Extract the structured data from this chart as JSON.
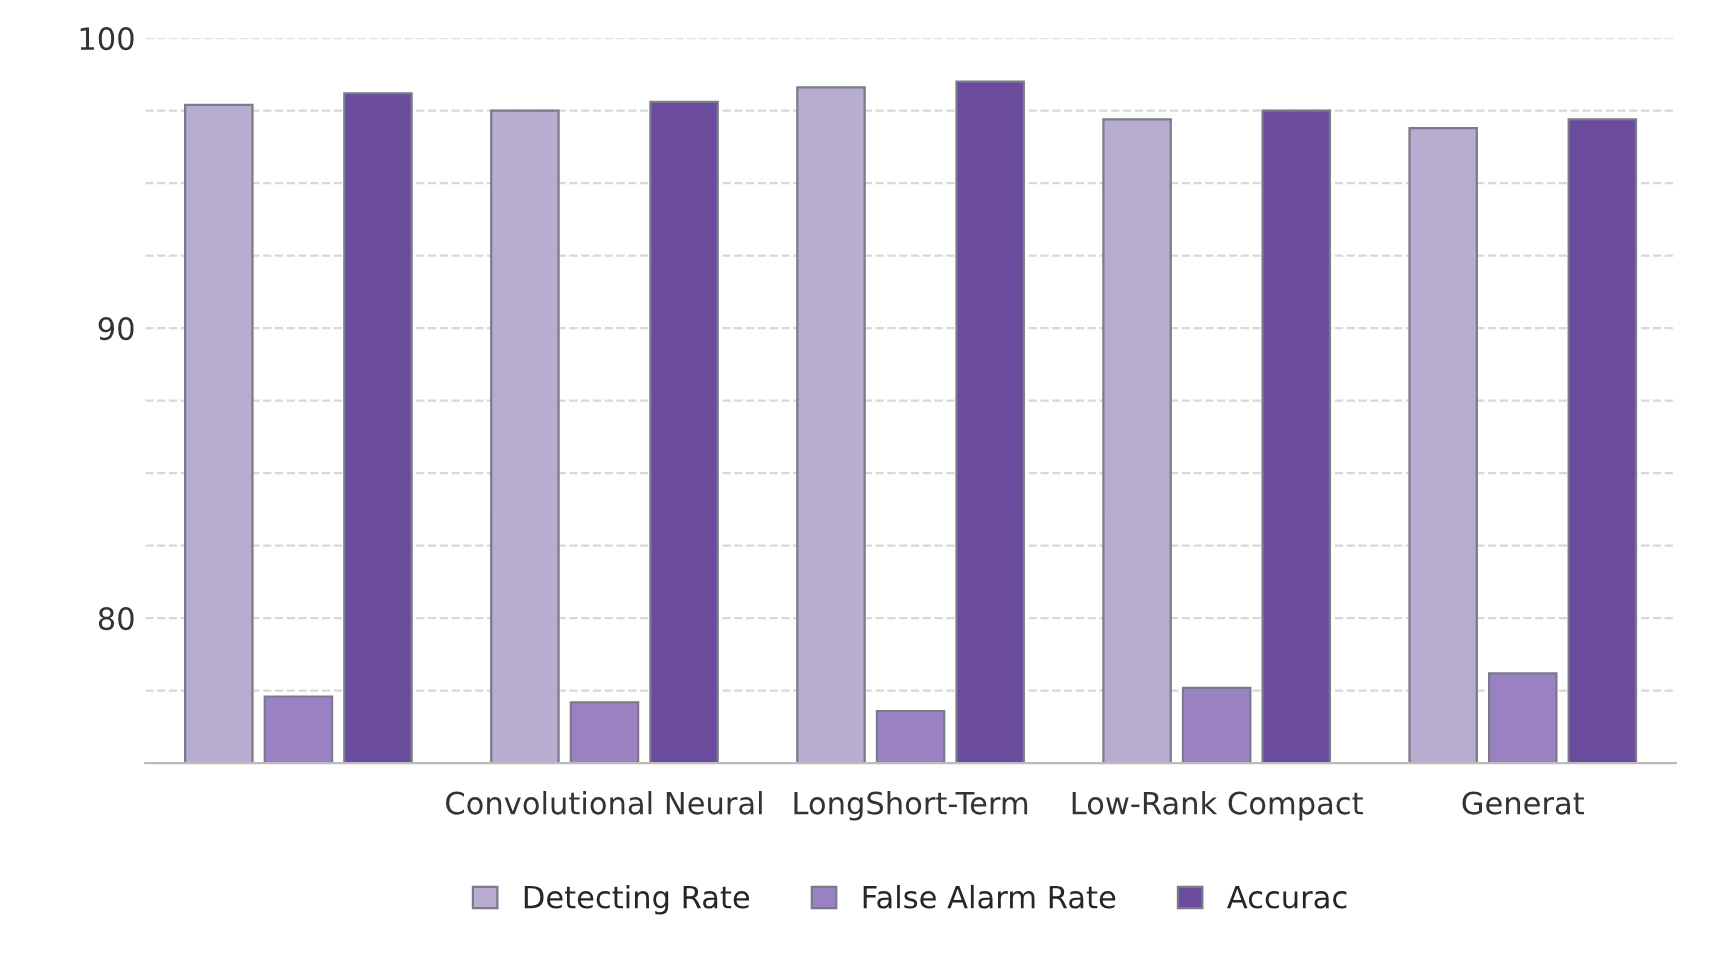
{
  "chart_data": {
    "type": "bar",
    "categories": [
      null,
      "Convolutional Neural",
      "LongShort-Term",
      "Low-Rank Compact",
      "Generat"
    ],
    "series": [
      {
        "name": "Detecting Rate",
        "color": "#b8acd0",
        "values": [
          97.7,
          97.5,
          98.3,
          97.2,
          96.9
        ]
      },
      {
        "name": "False Alarm Rate",
        "color": "#9a82c2",
        "values": [
          77.3,
          77.1,
          76.8,
          77.6,
          78.1
        ]
      },
      {
        "name": "Accurac",
        "color": "#6b4b9c",
        "values": [
          98.1,
          97.8,
          98.5,
          97.5,
          97.2
        ]
      }
    ],
    "ylim": [
      75,
      100
    ],
    "yticks": [
      {
        "value": 77.5,
        "label": null
      },
      80,
      {
        "value": 82.5,
        "label": null
      },
      {
        "value": 85,
        "label": null
      },
      {
        "value": 87.5,
        "label": null
      },
      90,
      {
        "value": 92.5,
        "label": null
      },
      {
        "value": 95,
        "label": null
      },
      {
        "value": 97.5,
        "label": null
      },
      100
    ],
    "grid": "y",
    "legend": "bottom"
  }
}
